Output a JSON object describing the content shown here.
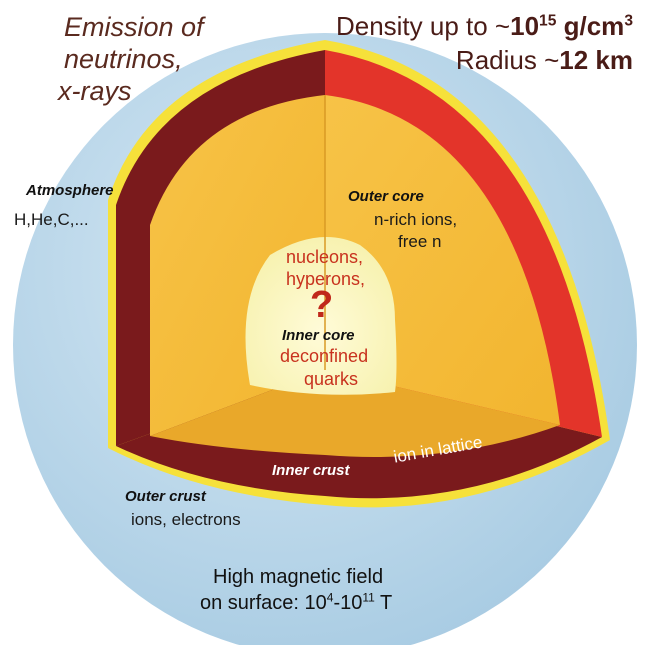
{
  "colors": {
    "atmosphere": "#a9cce3",
    "outer_crust_yellow": "#f6e13a",
    "inner_crust_dark": "#7a1a1c",
    "outer_core_orange": "#f2b52f",
    "outer_core_red": "#e3342a",
    "inner_core_cream": "#f7f2b0",
    "label_red": "#c8321e"
  },
  "header_left": {
    "line1": "Emission of",
    "line2": "neutrinos,",
    "line3": "x-rays"
  },
  "header_right": {
    "density_prefix": "Density up to ~",
    "density_base": "10",
    "density_exp": "15",
    "density_unit": " g/cm",
    "density_unit_exp": "3",
    "radius_prefix": "Radius ~",
    "radius_value": "12 km"
  },
  "atmosphere": {
    "title": "Atmosphere",
    "composition": "H,He,C,..."
  },
  "outer_core": {
    "title": "Outer core",
    "line1": "n-rich ions,",
    "line2": "free n"
  },
  "inner_core": {
    "line1": "nucleons,",
    "line2": "hyperons,",
    "question": "?",
    "title": "Inner core",
    "line3": "deconfined",
    "line4": "quarks"
  },
  "inner_crust": {
    "title": "Inner crust",
    "detail": "ion in lattice"
  },
  "outer_crust": {
    "title": "Outer crust",
    "detail": "ions, electrons"
  },
  "magnetic_field": {
    "line1": "High magnetic field",
    "line2_prefix": "on surface: 10",
    "exp_low": "4",
    "dash": "-10",
    "exp_high": "11",
    "unit": " T"
  }
}
